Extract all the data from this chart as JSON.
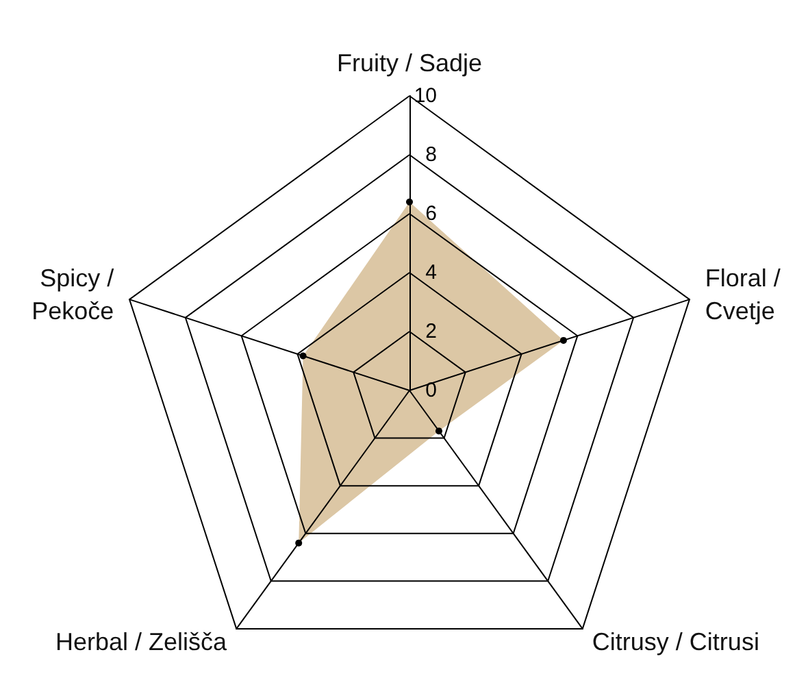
{
  "chart_data": {
    "type": "radar",
    "categories": [
      "Fruity / Sadje",
      "Floral / Cvetje",
      "Citrusy / Citrusi",
      "Herbal / Zelišča",
      "Spicy / Pekoče"
    ],
    "series": [
      {
        "color": "#dcc7a5",
        "values": [
          6.4,
          5.5,
          1.7,
          6.4,
          3.8
        ]
      }
    ],
    "ylim": [
      0,
      10
    ],
    "yticks": [
      0,
      2,
      4,
      6,
      8,
      10
    ],
    "marker": "circle"
  }
}
